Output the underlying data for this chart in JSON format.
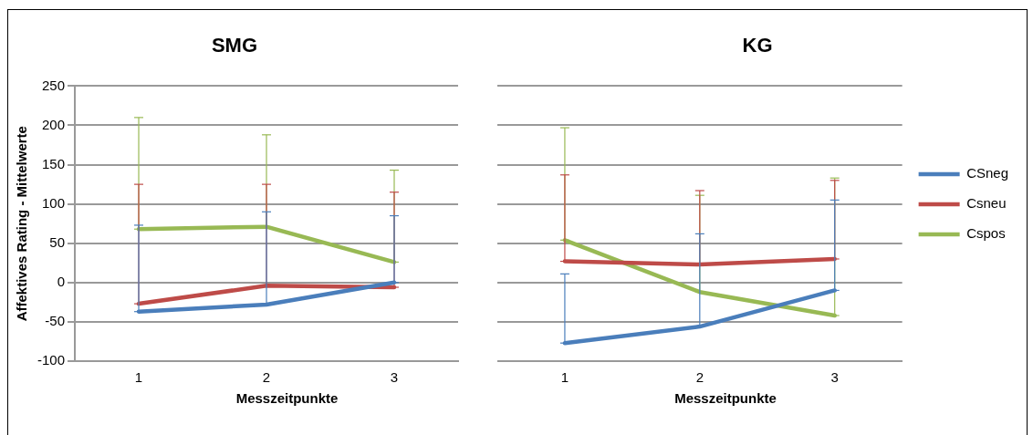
{
  "chart_data": [
    {
      "type": "line",
      "title": "SMG",
      "xlabel": "Messzeitpunkte",
      "ylabel": "Affektives Rating - Mittelwerte",
      "categories": [
        "1",
        "2",
        "3"
      ],
      "ylim": [
        -100,
        250
      ],
      "yticks": [
        -100,
        -50,
        0,
        50,
        100,
        150,
        200,
        250
      ],
      "grid": "y",
      "marker": "none",
      "legend": false,
      "series": [
        {
          "color": "#4a7ebb",
          "values": [
            -37,
            -28,
            0
          ],
          "errors": [
            [
              -37,
              73
            ],
            [
              -28,
              90
            ],
            [
              0,
              85
            ]
          ]
        },
        {
          "color": "#be4b48",
          "values": [
            -27,
            -4,
            -6
          ],
          "errors": [
            [
              -27,
              125
            ],
            [
              -4,
              125
            ],
            [
              -6,
              115
            ]
          ]
        },
        {
          "color": "#98b954",
          "values": [
            68,
            71,
            26
          ],
          "errors": [
            [
              68,
              210
            ],
            [
              71,
              188
            ],
            [
              26,
              143
            ]
          ]
        }
      ]
    },
    {
      "type": "line",
      "title": "KG",
      "xlabel": "Messzeitpunkte",
      "categories": [
        "1",
        "2",
        "3"
      ],
      "ylim": [
        -100,
        250
      ],
      "yticks": [
        -100,
        -50,
        0,
        50,
        100,
        150,
        200,
        250
      ],
      "grid": "y",
      "marker": "none",
      "legend": "right",
      "tick_labels": "x",
      "series": [
        {
          "name": "CSneg",
          "color": "#4a7ebb",
          "values": [
            -77,
            -56,
            -10
          ],
          "errors": [
            [
              -77,
              11
            ],
            [
              -56,
              62
            ],
            [
              -10,
              105
            ]
          ]
        },
        {
          "name": "Csneu",
          "color": "#be4b48",
          "values": [
            27,
            23,
            30
          ],
          "errors": [
            [
              27,
              137
            ],
            [
              23,
              117
            ],
            [
              30,
              130
            ]
          ]
        },
        {
          "name": "Cspos",
          "color": "#98b954",
          "values": [
            54,
            -12,
            -42
          ],
          "errors": [
            [
              54,
              197
            ],
            [
              -12,
              111
            ],
            [
              -42,
              133
            ]
          ]
        }
      ]
    }
  ]
}
